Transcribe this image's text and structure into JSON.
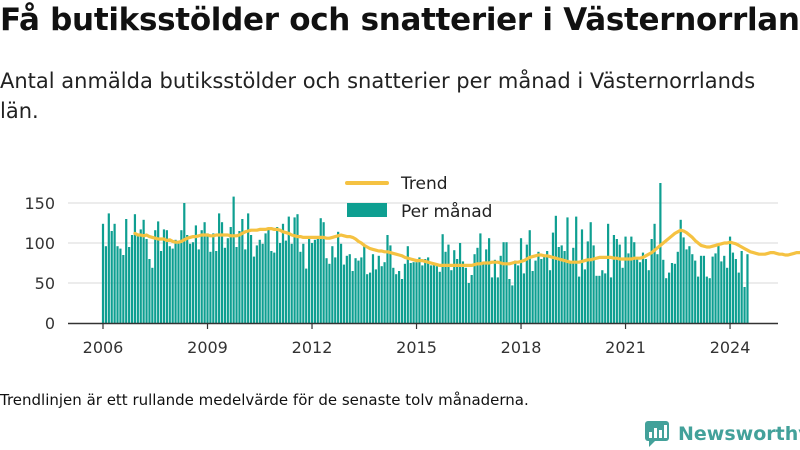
{
  "title": "Få butiksstölder och snatterier i Västernorrland",
  "subtitle": "Antal anmälda butiksstölder och snatterier per månad i Västernorrlands län.",
  "footnote": "Trendlinjen är ett rullande medelvärde för de senaste tolv månaderna.",
  "brand": "Newsworthy",
  "colors": {
    "bars": "#0e9f91",
    "trend": "#f5c242",
    "axis": "#333333",
    "grid": "#d9d9d9",
    "brand": "#43a19a"
  },
  "icons": {
    "brand_logo": "newsworthy-logo-icon"
  },
  "chart_data": {
    "type": "bar",
    "xlabel": "",
    "ylabel": "",
    "ylim": [
      0,
      175
    ],
    "yticks": [
      0,
      50,
      100,
      150
    ],
    "xticks": [
      "2006",
      "2009",
      "2012",
      "2015",
      "2018",
      "2021",
      "2024"
    ],
    "legend": {
      "placement": "top-center",
      "entries": [
        "Trend",
        "Per månad"
      ]
    },
    "grid": true,
    "start_month": "2006-01",
    "series": [
      {
        "name": "Per månad",
        "type": "bar",
        "values": [
          124,
          96,
          137,
          115,
          124,
          96,
          93,
          85,
          130,
          95,
          110,
          136,
          110,
          117,
          129,
          105,
          80,
          69,
          116,
          127,
          90,
          117,
          116,
          96,
          93,
          104,
          102,
          116,
          150,
          110,
          99,
          101,
          122,
          92,
          116,
          126,
          112,
          89,
          112,
          90,
          137,
          126,
          94,
          106,
          120,
          158,
          95,
          115,
          130,
          92,
          137,
          110,
          83,
          97,
          104,
          99,
          112,
          118,
          90,
          88,
          120,
          100,
          124,
          103,
          133,
          99,
          132,
          136,
          89,
          99,
          68,
          108,
          100,
          104,
          107,
          131,
          126,
          81,
          74,
          96,
          82,
          114,
          99,
          73,
          84,
          86,
          65,
          81,
          78,
          82,
          97,
          61,
          63,
          86,
          67,
          84,
          71,
          76,
          110,
          97,
          69,
          61,
          65,
          55,
          74,
          96,
          75,
          76,
          76,
          82,
          72,
          80,
          82,
          72,
          74,
          71,
          64,
          111,
          89,
          98,
          66,
          91,
          80,
          100,
          77,
          69,
          50,
          60,
          86,
          94,
          112,
          74,
          92,
          106,
          57,
          79,
          57,
          84,
          101,
          101,
          55,
          47,
          78,
          72,
          106,
          62,
          98,
          116,
          65,
          78,
          89,
          80,
          84,
          90,
          66,
          113,
          134,
          95,
          97,
          90,
          132,
          77,
          94,
          133,
          58,
          117,
          67,
          102,
          126,
          97,
          59,
          59,
          66,
          62,
          124,
          57,
          110,
          105,
          98,
          69,
          108,
          87,
          108,
          101,
          80,
          76,
          88,
          80,
          66,
          105,
          124,
          86,
          175,
          79,
          56,
          63,
          75,
          74,
          89,
          129,
          107,
          92,
          96,
          86,
          78,
          58,
          84,
          84,
          58,
          56,
          83,
          87,
          99,
          77,
          84,
          69,
          108,
          88,
          80,
          63,
          90,
          45,
          86
        ]
      },
      {
        "name": "Trend",
        "type": "line",
        "start_month": "2006-12",
        "values": [
          112,
          110,
          110,
          109,
          110,
          108,
          107,
          106,
          105,
          105,
          105,
          103,
          104,
          102,
          101,
          101,
          102,
          104,
          106,
          107,
          108,
          108,
          109,
          110,
          110,
          110,
          109,
          109,
          110,
          110,
          110,
          110,
          110,
          109,
          109,
          109,
          110,
          112,
          114,
          115,
          116,
          116,
          116,
          117,
          117,
          117,
          118,
          118,
          117,
          117,
          116,
          114,
          113,
          112,
          110,
          109,
          108,
          108,
          107,
          107,
          107,
          107,
          107,
          107,
          107,
          107,
          106,
          106,
          107,
          108,
          109,
          110,
          109,
          108,
          108,
          107,
          105,
          102,
          100,
          97,
          95,
          93,
          92,
          91,
          90,
          90,
          89,
          89,
          88,
          87,
          86,
          85,
          84,
          82,
          81,
          80,
          79,
          78,
          78,
          78,
          77,
          76,
          75,
          74,
          73,
          72,
          72,
          72,
          72,
          72,
          72,
          72,
          72,
          72,
          72,
          72,
          72,
          73,
          74,
          74,
          75,
          75,
          75,
          76,
          76,
          76,
          75,
          74,
          74,
          74,
          75,
          76,
          76,
          77,
          78,
          80,
          82,
          83,
          84,
          85,
          85,
          84,
          84,
          83,
          82,
          81,
          80,
          79,
          78,
          77,
          76,
          76,
          76,
          76,
          77,
          78,
          79,
          79,
          80,
          81,
          82,
          82,
          82,
          82,
          82,
          81,
          81,
          80,
          80,
          80,
          80,
          80,
          81,
          81,
          81,
          82,
          84,
          86,
          88,
          91,
          94,
          97,
          100,
          103,
          106,
          109,
          112,
          114,
          116,
          115,
          113,
          110,
          107,
          103,
          100,
          97,
          96,
          95,
          95,
          96,
          97,
          98,
          99,
          100,
          100,
          101,
          100,
          99,
          97,
          95,
          93,
          91,
          89,
          88,
          87,
          86,
          86,
          86,
          87,
          88,
          88,
          87,
          86,
          86,
          85,
          85,
          86,
          87,
          88,
          88,
          89,
          89,
          89,
          89,
          90,
          90,
          90,
          88,
          86,
          85,
          85,
          84,
          83,
          82,
          82,
          83,
          84,
          85,
          85,
          84,
          83,
          82,
          81,
          80
        ]
      }
    ]
  }
}
